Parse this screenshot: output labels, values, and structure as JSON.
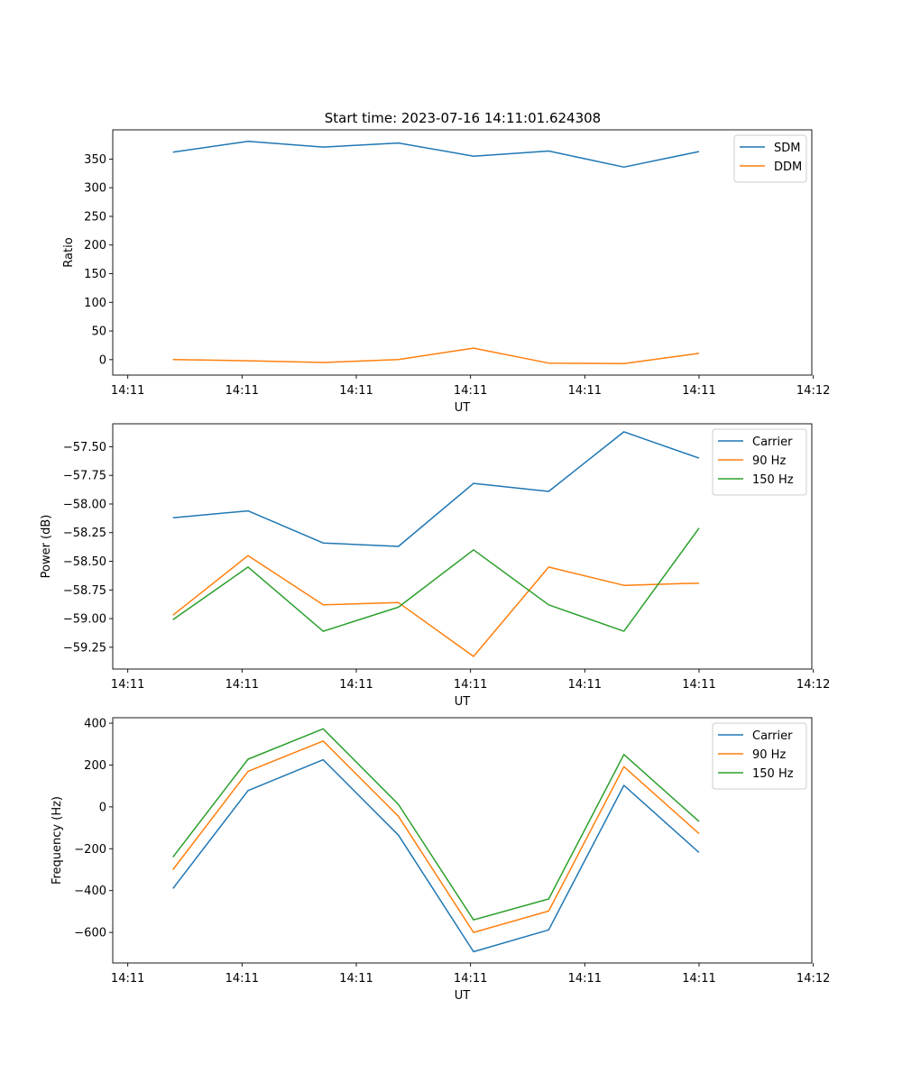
{
  "figure": {
    "title": "Start time: 2023-07-16 14:11:01.624308"
  },
  "chart_data": [
    {
      "type": "line",
      "title": "Start time: 2023-07-16 14:11:01.624308",
      "xlabel": "UT",
      "ylabel": "Ratio",
      "x": [
        1,
        2,
        3,
        4,
        5,
        6,
        7,
        8
      ],
      "xlim": [
        0.2,
        9.5
      ],
      "xticks": [
        0.4,
        1.92,
        3.44,
        4.96,
        6.48,
        8.0,
        9.52
      ],
      "xticklabels": [
        "14:11",
        "14:11",
        "14:11",
        "14:11",
        "14:11",
        "14:11",
        "14:12"
      ],
      "ylim": [
        -27,
        401
      ],
      "yticks": [
        0,
        50,
        100,
        150,
        200,
        250,
        300,
        350
      ],
      "yticklabels": [
        "0",
        "50",
        "100",
        "150",
        "200",
        "250",
        "300",
        "350"
      ],
      "legend": "top-right",
      "series": [
        {
          "name": "SDM",
          "color": "#1f77b4",
          "values": [
            362,
            381,
            371,
            378,
            355,
            364,
            336,
            363
          ]
        },
        {
          "name": "DDM",
          "color": "#ff7f0e",
          "values": [
            0,
            -2,
            -5,
            0,
            20,
            -6,
            -7,
            11
          ]
        }
      ]
    },
    {
      "type": "line",
      "xlabel": "UT",
      "ylabel": "Power (dB)",
      "x": [
        1,
        2,
        3,
        4,
        5,
        6,
        7,
        8
      ],
      "xlim": [
        0.2,
        9.5
      ],
      "xticks": [
        0.4,
        1.92,
        3.44,
        4.96,
        6.48,
        8.0,
        9.52
      ],
      "xticklabels": [
        "14:11",
        "14:11",
        "14:11",
        "14:11",
        "14:11",
        "14:11",
        "14:12"
      ],
      "ylim": [
        -59.44,
        -57.3
      ],
      "yticks": [
        -59.25,
        -59.0,
        -58.75,
        -58.5,
        -58.25,
        -58.0,
        -57.75,
        -57.5
      ],
      "yticklabels": [
        "−59.25",
        "−59.00",
        "−58.75",
        "−58.50",
        "−58.25",
        "−58.00",
        "−57.75",
        "−57.50"
      ],
      "legend": "top-right",
      "series": [
        {
          "name": "Carrier",
          "color": "#1f77b4",
          "values": [
            -58.12,
            -58.06,
            -58.34,
            -58.37,
            -57.82,
            -57.89,
            -57.37,
            -57.6
          ]
        },
        {
          "name": "90 Hz",
          "color": "#ff7f0e",
          "values": [
            -58.97,
            -58.45,
            -58.88,
            -58.86,
            -59.33,
            -58.55,
            -58.71,
            -58.69
          ]
        },
        {
          "name": "150 Hz",
          "color": "#2ca02c",
          "values": [
            -59.01,
            -58.55,
            -59.11,
            -58.9,
            -58.4,
            -58.88,
            -59.11,
            -58.21
          ]
        }
      ]
    },
    {
      "type": "line",
      "xlabel": "UT",
      "ylabel": "Frequency (Hz)",
      "x": [
        1,
        2,
        3,
        4,
        5,
        6,
        7,
        8
      ],
      "xlim": [
        0.2,
        9.5
      ],
      "xticks": [
        0.4,
        1.92,
        3.44,
        4.96,
        6.48,
        8.0,
        9.52
      ],
      "xticklabels": [
        "14:11",
        "14:11",
        "14:11",
        "14:11",
        "14:11",
        "14:11",
        "14:12"
      ],
      "ylim": [
        -746,
        426
      ],
      "yticks": [
        -600,
        -400,
        -200,
        0,
        200,
        400
      ],
      "yticklabels": [
        "−600",
        "−400",
        "−200",
        "0",
        "200",
        "400"
      ],
      "legend": "top-right",
      "series": [
        {
          "name": "Carrier",
          "color": "#1f77b4",
          "values": [
            -390,
            78,
            225,
            -135,
            -692,
            -588,
            103,
            -218
          ]
        },
        {
          "name": "90 Hz",
          "color": "#ff7f0e",
          "values": [
            -300,
            170,
            315,
            -45,
            -600,
            -498,
            192,
            -128
          ]
        },
        {
          "name": "150 Hz",
          "color": "#2ca02c",
          "values": [
            -240,
            228,
            373,
            12,
            -540,
            -440,
            250,
            -70
          ]
        }
      ]
    }
  ]
}
